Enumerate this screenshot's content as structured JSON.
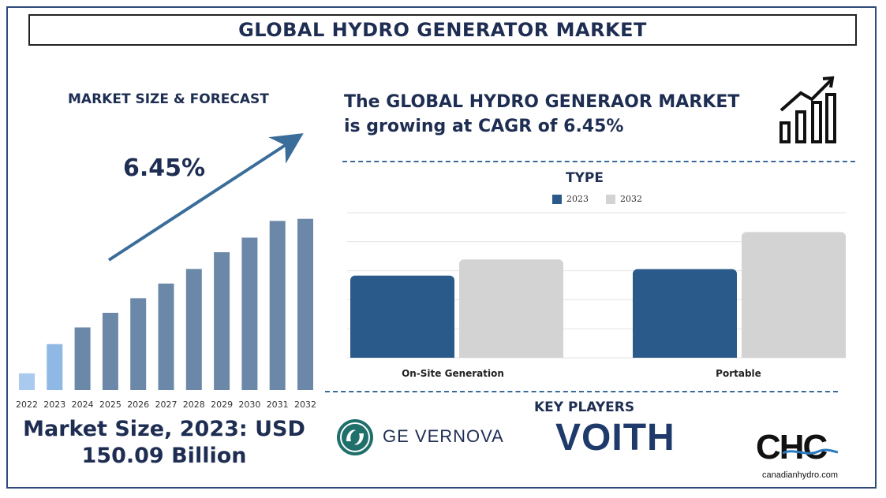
{
  "header": {
    "title": "GLOBAL HYDRO GENERATOR MARKET"
  },
  "left_panel": {
    "subtitle": "MARKET SIZE & FORECAST",
    "cagr_label": "6.45%",
    "market_size_text": "Market Size, 2023: USD 150.09 Billion"
  },
  "headline": {
    "line1": "The GLOBAL HYDRO GENERAOR MARKET",
    "line2": "is growing at CAGR of 6.45%"
  },
  "key_players": {
    "title": "KEY PLAYERS",
    "players": [
      {
        "name": "GE VERNOVA",
        "icon": "ge-logo-icon"
      },
      {
        "name": "VOITH"
      },
      {
        "name": "CHC",
        "sub": "canadianhydro.com"
      }
    ]
  },
  "colors": {
    "navy": "#1e2d52",
    "bar_2022": "#a9c9ee",
    "bar_2023": "#8fb8e4",
    "bar_other": "#6c88a8",
    "series_2023": "#2a5a8a",
    "series_2032": "#d3d3d3"
  },
  "chart_data": [
    {
      "type": "bar",
      "title": "",
      "categories": [
        "2022",
        "2023",
        "2024",
        "2025",
        "2026",
        "2027",
        "2028",
        "2029",
        "2030",
        "2031",
        "2032"
      ],
      "values": [
        8,
        22,
        30,
        37,
        44,
        51,
        58,
        66,
        73,
        81,
        82
      ],
      "ylim": [
        0,
        100
      ],
      "grid": false,
      "annotation": "6.45%"
    },
    {
      "type": "bar",
      "title": "TYPE",
      "categories": [
        "On-Site Generation",
        "Portable"
      ],
      "series": [
        {
          "name": "2023",
          "values": [
            51,
            55
          ]
        },
        {
          "name": "2032",
          "values": [
            61,
            78
          ]
        }
      ],
      "ylim": [
        0,
        90
      ],
      "grid": true,
      "legend": "top-center"
    }
  ]
}
